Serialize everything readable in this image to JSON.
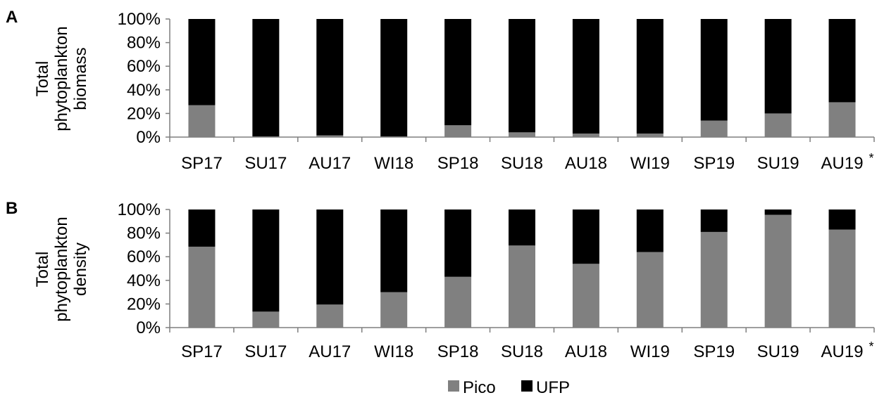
{
  "colors": {
    "pico": "#808080",
    "ufp": "#000000",
    "axis": "#7f7f7f"
  },
  "legend": {
    "items": [
      "Pico",
      "UFP"
    ]
  },
  "chart_data": [
    {
      "type": "bar",
      "stacked": true,
      "panel_label": "A",
      "ylabel_lines": [
        "Total",
        "phytoplankton",
        "biomass"
      ],
      "categories": [
        "SP17",
        "SU17",
        "AU17",
        "WI18",
        "SP18",
        "SU18",
        "AU18",
        "WI19",
        "SP19",
        "SU19",
        "AU19"
      ],
      "category_note": {
        "category": "AU19",
        "mark": "*"
      },
      "yticks": [
        "0%",
        "20%",
        "40%",
        "60%",
        "80%",
        "100%"
      ],
      "ylim": [
        0,
        100
      ],
      "series": [
        {
          "name": "Pico",
          "values": [
            27,
            0.5,
            1.5,
            0.5,
            10,
            4,
            3,
            3,
            14,
            20,
            29.5
          ]
        },
        {
          "name": "UFP",
          "values": [
            73,
            99.5,
            98.5,
            99.5,
            90,
            96,
            97,
            97,
            86,
            80,
            70.5
          ]
        }
      ]
    },
    {
      "type": "bar",
      "stacked": true,
      "panel_label": "B",
      "ylabel_lines": [
        "Total",
        "phytoplankton",
        "density"
      ],
      "categories": [
        "SP17",
        "SU17",
        "AU17",
        "WI18",
        "SP18",
        "SU18",
        "AU18",
        "WI19",
        "SP19",
        "SU19",
        "AU19"
      ],
      "category_note": {
        "category": "AU19",
        "mark": "*"
      },
      "yticks": [
        "0%",
        "20%",
        "40%",
        "60%",
        "80%",
        "100%"
      ],
      "ylim": [
        0,
        100
      ],
      "series": [
        {
          "name": "Pico",
          "values": [
            68.5,
            13.5,
            19.5,
            30,
            43,
            69.5,
            54,
            64,
            81,
            95.5,
            83
          ]
        },
        {
          "name": "UFP",
          "values": [
            31.5,
            86.5,
            80.5,
            70,
            57,
            30.5,
            46,
            36,
            19,
            4.5,
            17
          ]
        }
      ]
    }
  ]
}
